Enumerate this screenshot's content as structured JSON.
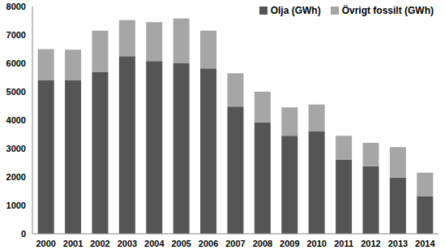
{
  "chart_data": {
    "type": "bar",
    "stacked": true,
    "legend": "upper right",
    "grid": false,
    "categories": [
      "2000",
      "2001",
      "2002",
      "2003",
      "2004",
      "2005",
      "2006",
      "2007",
      "2008",
      "2009",
      "2010",
      "2011",
      "2012",
      "2013",
      "2014"
    ],
    "series": [
      {
        "name": "Olja (GWh)",
        "color": "#555555",
        "values": [
          5400,
          5400,
          5700,
          6250,
          6080,
          6000,
          5820,
          4480,
          3920,
          3450,
          3600,
          2600,
          2380,
          1980,
          1320
        ]
      },
      {
        "name": "Övrigt fossilt (GWh)",
        "color": "#a6a6a6",
        "values": [
          1100,
          1080,
          1450,
          1270,
          1370,
          1580,
          1330,
          1170,
          1080,
          1000,
          950,
          850,
          820,
          1070,
          830
        ]
      }
    ],
    "ylim": [
      0,
      8000
    ],
    "yticks": [
      0,
      1000,
      2000,
      3000,
      4000,
      5000,
      6000,
      7000,
      8000
    ]
  }
}
